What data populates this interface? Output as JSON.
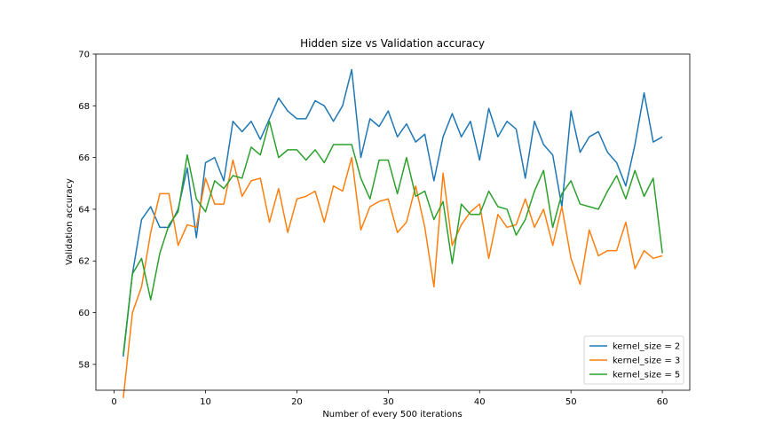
{
  "chart_data": {
    "type": "line",
    "title": "Hidden size vs Validation accuracy",
    "xlabel": "Number of every 500 iterations",
    "ylabel": "Validation accuracy",
    "xlim": [
      -2,
      63
    ],
    "ylim": [
      57,
      70
    ],
    "xticks": [
      0,
      10,
      20,
      30,
      40,
      50,
      60
    ],
    "yticks": [
      58,
      60,
      62,
      64,
      66,
      68,
      70
    ],
    "grid": false,
    "legend_position": "lower-right",
    "x": [
      1,
      2,
      3,
      4,
      5,
      6,
      7,
      8,
      9,
      10,
      11,
      12,
      13,
      14,
      15,
      16,
      17,
      18,
      19,
      20,
      21,
      22,
      23,
      24,
      25,
      26,
      27,
      28,
      29,
      30,
      31,
      32,
      33,
      34,
      35,
      36,
      37,
      38,
      39,
      40,
      41,
      42,
      43,
      44,
      45,
      46,
      47,
      48,
      49,
      50,
      51,
      52,
      53,
      54,
      55,
      56,
      57,
      58,
      59,
      60
    ],
    "series": [
      {
        "name": "kernel_size = 2",
        "color": "#1f77b4",
        "values": [
          58.3,
          61.5,
          63.6,
          64.1,
          63.3,
          63.3,
          64.0,
          65.6,
          62.9,
          65.8,
          66.0,
          65.1,
          67.4,
          67.0,
          67.4,
          66.7,
          67.5,
          68.3,
          67.8,
          67.5,
          67.5,
          68.2,
          68.0,
          67.4,
          68.0,
          69.4,
          66.0,
          67.5,
          67.2,
          67.8,
          66.8,
          67.3,
          66.6,
          66.9,
          65.1,
          66.8,
          67.7,
          66.8,
          67.4,
          65.9,
          67.9,
          66.8,
          67.4,
          67.1,
          65.2,
          67.4,
          66.5,
          66.1,
          64.1,
          67.8,
          66.2,
          66.8,
          67.0,
          66.2,
          65.8,
          64.9,
          66.5,
          68.5,
          66.6,
          66.8
        ]
      },
      {
        "name": "kernel_size = 3",
        "color": "#ff7f0e",
        "values": [
          56.7,
          60.0,
          61.0,
          63.1,
          64.6,
          64.6,
          62.6,
          63.4,
          63.3,
          65.2,
          64.2,
          64.2,
          65.9,
          64.5,
          65.1,
          65.2,
          63.5,
          64.8,
          63.1,
          64.4,
          64.5,
          64.7,
          63.5,
          64.9,
          64.7,
          66.0,
          63.2,
          64.1,
          64.3,
          64.4,
          63.1,
          63.5,
          64.9,
          63.3,
          61.0,
          65.4,
          62.6,
          63.4,
          63.9,
          64.2,
          62.1,
          63.8,
          63.3,
          63.4,
          64.4,
          63.3,
          64.0,
          62.6,
          64.1,
          62.1,
          61.1,
          63.2,
          62.2,
          62.4,
          62.4,
          63.5,
          61.7,
          62.4,
          62.1,
          62.2
        ]
      },
      {
        "name": "kernel_size = 5",
        "color": "#2ca02c",
        "values": [
          58.4,
          61.5,
          62.1,
          60.5,
          62.3,
          63.4,
          63.9,
          66.1,
          64.4,
          63.9,
          65.1,
          64.8,
          65.3,
          65.2,
          66.4,
          66.1,
          67.4,
          66.0,
          66.3,
          66.3,
          65.9,
          66.3,
          65.8,
          66.5,
          66.5,
          66.5,
          65.2,
          64.4,
          65.9,
          65.9,
          64.6,
          66.0,
          64.5,
          64.7,
          63.6,
          64.3,
          61.9,
          64.2,
          63.8,
          63.8,
          64.7,
          64.1,
          64.0,
          63.0,
          63.6,
          64.7,
          65.5,
          63.3,
          64.6,
          65.1,
          64.2,
          64.1,
          64.0,
          64.7,
          65.3,
          64.4,
          65.5,
          64.5,
          65.2,
          62.3
        ]
      }
    ]
  }
}
